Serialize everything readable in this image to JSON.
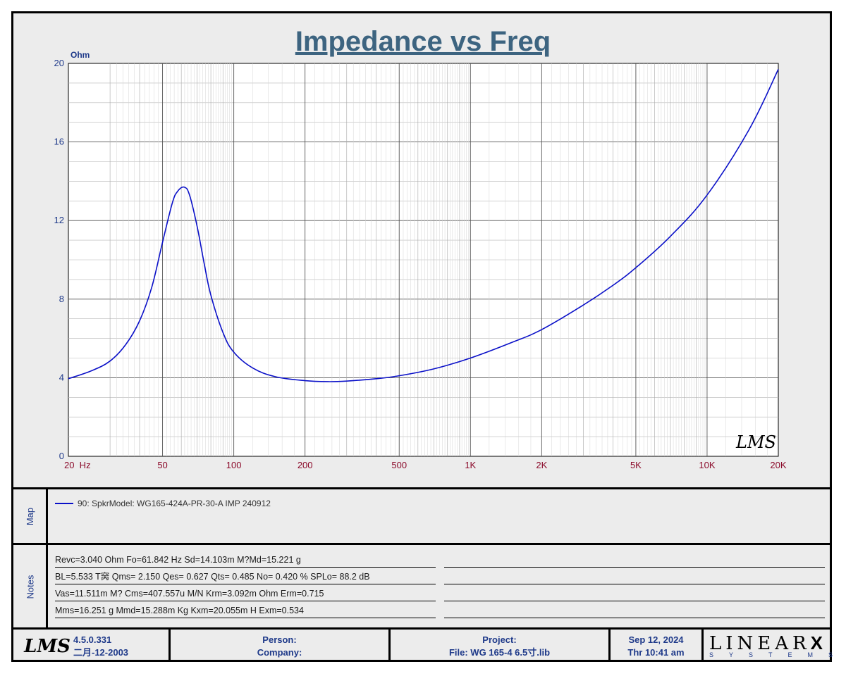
{
  "chart_data": {
    "type": "line",
    "title": "Impedance vs Freq",
    "ylabel": "Ohm",
    "x_scale": "log",
    "xlim": [
      20,
      20000
    ],
    "ylim": [
      0,
      20
    ],
    "x_ticks": [
      {
        "value": 20,
        "label": "20  Hz"
      },
      {
        "value": 50,
        "label": "50"
      },
      {
        "value": 100,
        "label": "100"
      },
      {
        "value": 200,
        "label": "200"
      },
      {
        "value": 500,
        "label": "500"
      },
      {
        "value": 1000,
        "label": "1K"
      },
      {
        "value": 2000,
        "label": "2K"
      },
      {
        "value": 5000,
        "label": "5K"
      },
      {
        "value": 10000,
        "label": "10K"
      },
      {
        "value": 20000,
        "label": "20K"
      }
    ],
    "y_ticks": [
      0,
      4,
      8,
      12,
      16,
      20
    ],
    "grid": true,
    "series": [
      {
        "name": "90: SpkrModel: WG165-424A-PR-30-A IMP 240912",
        "color": "#0a10c8",
        "x": [
          20,
          25,
          30,
          35,
          40,
          45,
          50,
          55,
          58,
          61.8,
          65,
          70,
          75,
          80,
          90,
          100,
          120,
          150,
          200,
          250,
          300,
          400,
          500,
          700,
          1000,
          1500,
          2000,
          3000,
          4000,
          5000,
          7000,
          10000,
          15000,
          20000
        ],
        "y": [
          3.95,
          4.35,
          4.85,
          5.7,
          6.9,
          8.6,
          10.9,
          12.9,
          13.5,
          13.7,
          13.3,
          11.7,
          9.8,
          8.2,
          6.3,
          5.3,
          4.5,
          4.05,
          3.85,
          3.8,
          3.83,
          3.95,
          4.1,
          4.45,
          5.0,
          5.8,
          6.45,
          7.7,
          8.7,
          9.6,
          11.2,
          13.3,
          16.6,
          19.7
        ]
      }
    ],
    "watermark": "LMS"
  },
  "legend": {
    "label": "Map",
    "entry": "90: SpkrModel: WG165-424A-PR-30-A IMP 240912"
  },
  "notes": {
    "label": "Notes",
    "lines": [
      "Revc=3.040 Ohm  Fo=61.842 Hz  Sd=14.103m M?Md=15.221 g",
      "BL=5.533 T窉  Qms= 2.150  Qes= 0.627  Qts= 0.485  No= 0.420 %  SPLo= 88.2 dB",
      "Vas=11.511m M? Cms=407.557u M/N  Krm=3.092m Ohm  Erm=0.715",
      "Mms=16.251 g  Mmd=15.288m Kg  Kxm=20.055m H  Exm=0.534"
    ]
  },
  "footer": {
    "logo": "LMS",
    "version": "4.5.0.331",
    "build_date": "二月-12-2003",
    "person_label": "Person:",
    "company_label": "Company:",
    "project_label": "Project:",
    "file_label": "File: WG 165-4 6.5寸.lib",
    "date": "Sep 12, 2024",
    "time": "Thr 10:41 am",
    "brand": "LINEAR",
    "brand_x": "X",
    "brand_sub": "SYSTEMS"
  }
}
